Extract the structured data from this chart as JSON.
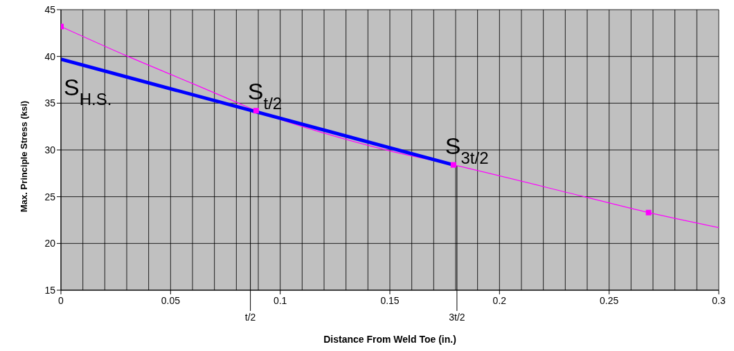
{
  "chart_data": {
    "type": "line",
    "xlabel": "Distance From Weld Toe (in.)",
    "ylabel": "Max. Principle Stress (ksi)",
    "xlim": [
      0,
      0.3
    ],
    "ylim": [
      15,
      45
    ],
    "xticks": [
      0,
      {
        "value": 0.01,
        "label": null
      },
      {
        "value": 0.02,
        "label": null
      },
      {
        "value": 0.03,
        "label": null
      },
      {
        "value": 0.04,
        "label": null
      },
      0.05,
      {
        "value": 0.06,
        "label": null
      },
      {
        "value": 0.07,
        "label": null
      },
      {
        "value": 0.08,
        "label": null
      },
      {
        "value": 0.09,
        "label": null
      },
      0.1,
      {
        "value": 0.11,
        "label": null
      },
      {
        "value": 0.12,
        "label": null
      },
      {
        "value": 0.13,
        "label": null
      },
      {
        "value": 0.14,
        "label": null
      },
      0.15,
      {
        "value": 0.16,
        "label": null
      },
      {
        "value": 0.17,
        "label": null
      },
      {
        "value": 0.18,
        "label": null
      },
      {
        "value": 0.19,
        "label": null
      },
      0.2,
      {
        "value": 0.21,
        "label": null
      },
      {
        "value": 0.22,
        "label": null
      },
      {
        "value": 0.23,
        "label": null
      },
      {
        "value": 0.24,
        "label": null
      },
      0.25,
      {
        "value": 0.26,
        "label": null
      },
      {
        "value": 0.27,
        "label": null
      },
      {
        "value": 0.28,
        "label": null
      },
      {
        "value": 0.29,
        "label": null
      },
      0.3
    ],
    "yticks": [
      15,
      20,
      25,
      30,
      35,
      40,
      45
    ],
    "grid": true,
    "series": [
      {
        "color": "#ff00ff",
        "marker": "none",
        "x": [
          0,
          0.0306,
          0.06,
          0.081,
          0.089,
          0.12,
          0.15,
          0.179,
          0.2386,
          0.268,
          0.3
        ],
        "values": [
          43.2,
          40,
          37.1,
          35,
          34.2,
          31.8,
          29.9,
          28.4,
          25,
          23.3,
          21.7
        ]
      },
      {
        "type": "scatter",
        "color": "#ff00ff",
        "marker": "square",
        "x": [
          0,
          0.089,
          0.179,
          0.268
        ],
        "values": [
          43.2,
          34.2,
          28.4,
          23.3
        ]
      },
      {
        "color": "#0000ff",
        "marker": "none",
        "x": [
          0,
          0.179
        ],
        "values": [
          39.7,
          28.4
        ]
      }
    ],
    "ref_lines": [
      {
        "axis": "x",
        "value": 0.0864,
        "label": "t/2",
        "color": "#000000"
      },
      {
        "axis": "x",
        "value": 0.1806,
        "label": "3t/2",
        "color": "#000000"
      }
    ],
    "annotations": [
      {
        "text": "S$_{H.S.}$",
        "x": 0,
        "y": 39.7
      },
      {
        "text": "S$_{t/2}$",
        "x": 0.089,
        "y": 34.2
      },
      {
        "text": "S$_{3t/2}$",
        "x": 0.179,
        "y": 28.4
      }
    ]
  }
}
